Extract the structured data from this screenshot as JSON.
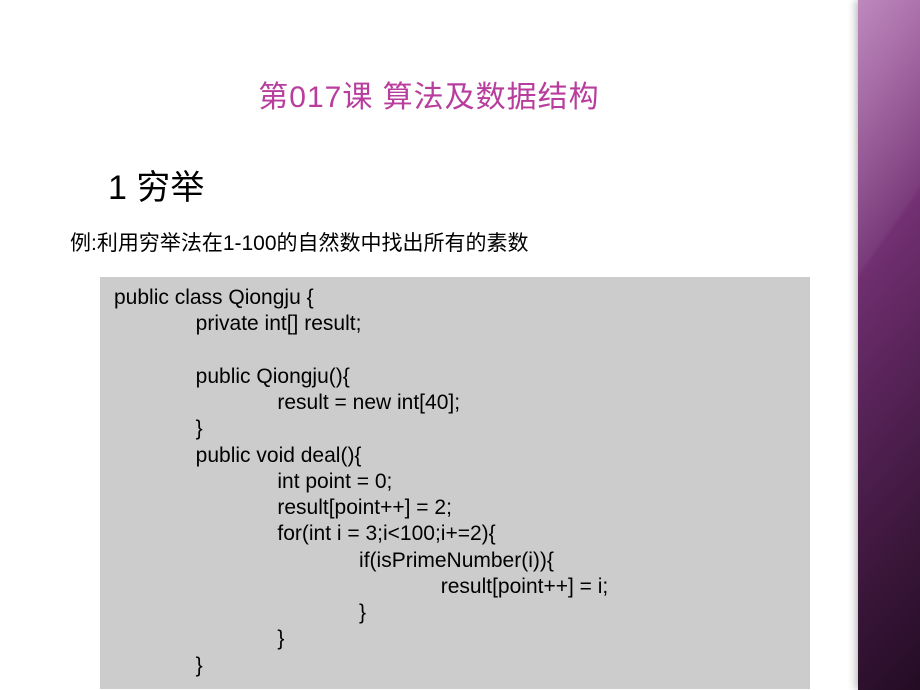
{
  "title": {
    "text": "第017课 算法及数据结构",
    "color": "#b83d9c"
  },
  "section": {
    "heading": "1 穷举",
    "example": "例:利用穷举法在1-100的自然数中找出所有的素数"
  },
  "code": {
    "lines": "public class Qiongju {\n              private int[] result;\n\n              public Qiongju(){\n                            result = new int[40];\n              }\n              public void deal(){\n                            int point = 0;\n                            result[point++] = 2;\n                            for(int i = 3;i<100;i+=2){\n                                          if(isPrimeNumber(i)){\n                                                        result[point++] = i;\n                                          }\n                            }\n              }",
    "background": "#cccccc"
  },
  "panel": {
    "gradient_from": "#9a4a9a",
    "gradient_mid": "#6d2d6d",
    "gradient_to": "#2d0f2d"
  }
}
